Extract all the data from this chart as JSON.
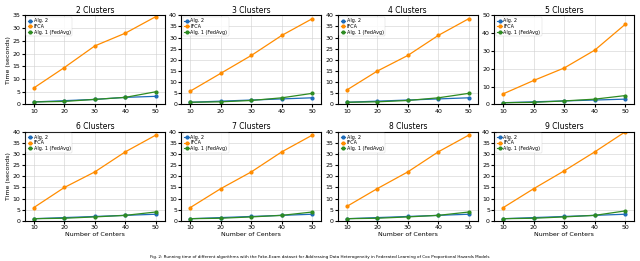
{
  "x": [
    10,
    20,
    30,
    40,
    50
  ],
  "panels": [
    {
      "title": "2 Clusters",
      "ylim": [
        0,
        35
      ],
      "yticks": [
        0,
        5,
        10,
        15,
        20,
        25,
        30,
        35
      ],
      "ifca": [
        6.5,
        14.5,
        23.0,
        28.0,
        34.5
      ],
      "alg2": [
        1.0,
        1.5,
        2.0,
        2.8,
        3.2
      ],
      "alg1": [
        1.0,
        1.2,
        2.0,
        2.8,
        5.0
      ]
    },
    {
      "title": "3 Clusters",
      "ylim": [
        0,
        40
      ],
      "yticks": [
        0,
        5,
        10,
        15,
        20,
        25,
        30,
        35,
        40
      ],
      "ifca": [
        6.0,
        14.0,
        22.0,
        31.0,
        38.5
      ],
      "alg2": [
        1.0,
        1.5,
        2.0,
        2.5,
        3.0
      ],
      "alg1": [
        1.0,
        1.2,
        1.8,
        3.0,
        5.0
      ]
    },
    {
      "title": "4 Clusters",
      "ylim": [
        0,
        40
      ],
      "yticks": [
        0,
        5,
        10,
        15,
        20,
        25,
        30,
        35,
        40
      ],
      "ifca": [
        6.5,
        15.0,
        22.0,
        31.0,
        38.5
      ],
      "alg2": [
        1.0,
        1.5,
        2.0,
        2.5,
        3.0
      ],
      "alg1": [
        1.0,
        1.2,
        1.8,
        3.0,
        5.0
      ]
    },
    {
      "title": "5 Clusters",
      "ylim": [
        0,
        50
      ],
      "yticks": [
        0,
        10,
        20,
        30,
        40,
        50
      ],
      "ifca": [
        6.0,
        13.5,
        20.5,
        30.5,
        45.0
      ],
      "alg2": [
        1.0,
        1.5,
        2.0,
        2.5,
        3.0
      ],
      "alg1": [
        1.0,
        1.2,
        2.0,
        3.0,
        5.0
      ]
    },
    {
      "title": "6 Clusters",
      "ylim": [
        0,
        40
      ],
      "yticks": [
        0,
        5,
        10,
        15,
        20,
        25,
        30,
        35,
        40
      ],
      "ifca": [
        6.0,
        15.0,
        22.0,
        31.0,
        38.5
      ],
      "alg2": [
        1.0,
        1.5,
        2.0,
        2.5,
        3.0
      ],
      "alg1": [
        1.0,
        1.2,
        1.8,
        2.5,
        4.0
      ]
    },
    {
      "title": "7 Clusters",
      "ylim": [
        0,
        40
      ],
      "yticks": [
        0,
        5,
        10,
        15,
        20,
        25,
        30,
        35,
        40
      ],
      "ifca": [
        6.0,
        14.5,
        22.0,
        31.0,
        38.5
      ],
      "alg2": [
        1.0,
        1.5,
        2.0,
        2.5,
        3.0
      ],
      "alg1": [
        1.0,
        1.2,
        1.8,
        2.5,
        4.0
      ]
    },
    {
      "title": "8 Clusters",
      "ylim": [
        0,
        40
      ],
      "yticks": [
        0,
        5,
        10,
        15,
        20,
        25,
        30,
        35,
        40
      ],
      "ifca": [
        6.5,
        14.5,
        22.0,
        31.0,
        38.5
      ],
      "alg2": [
        1.0,
        1.5,
        2.0,
        2.5,
        3.0
      ],
      "alg1": [
        1.0,
        1.2,
        1.8,
        2.5,
        4.0
      ]
    },
    {
      "title": "9 Clusters",
      "ylim": [
        0,
        40
      ],
      "yticks": [
        0,
        5,
        10,
        15,
        20,
        25,
        30,
        35,
        40
      ],
      "ifca": [
        6.0,
        14.5,
        22.5,
        31.0,
        40.0
      ],
      "alg2": [
        1.0,
        1.5,
        2.0,
        2.5,
        3.0
      ],
      "alg1": [
        1.0,
        1.2,
        1.8,
        2.5,
        4.5
      ]
    }
  ],
  "color_ifca": "#FF8C00",
  "color_alg2": "#1E6BB8",
  "color_alg1": "#2E8B22",
  "xlabel": "Number of Centers",
  "ylabel": "Time (seconds)",
  "caption": "Fig. 2: Running time of different algorithms with the Fake-Exam dataset for Addressing Data Heterogeneity in Federated Learning of Cox Proportional Hazards Models"
}
